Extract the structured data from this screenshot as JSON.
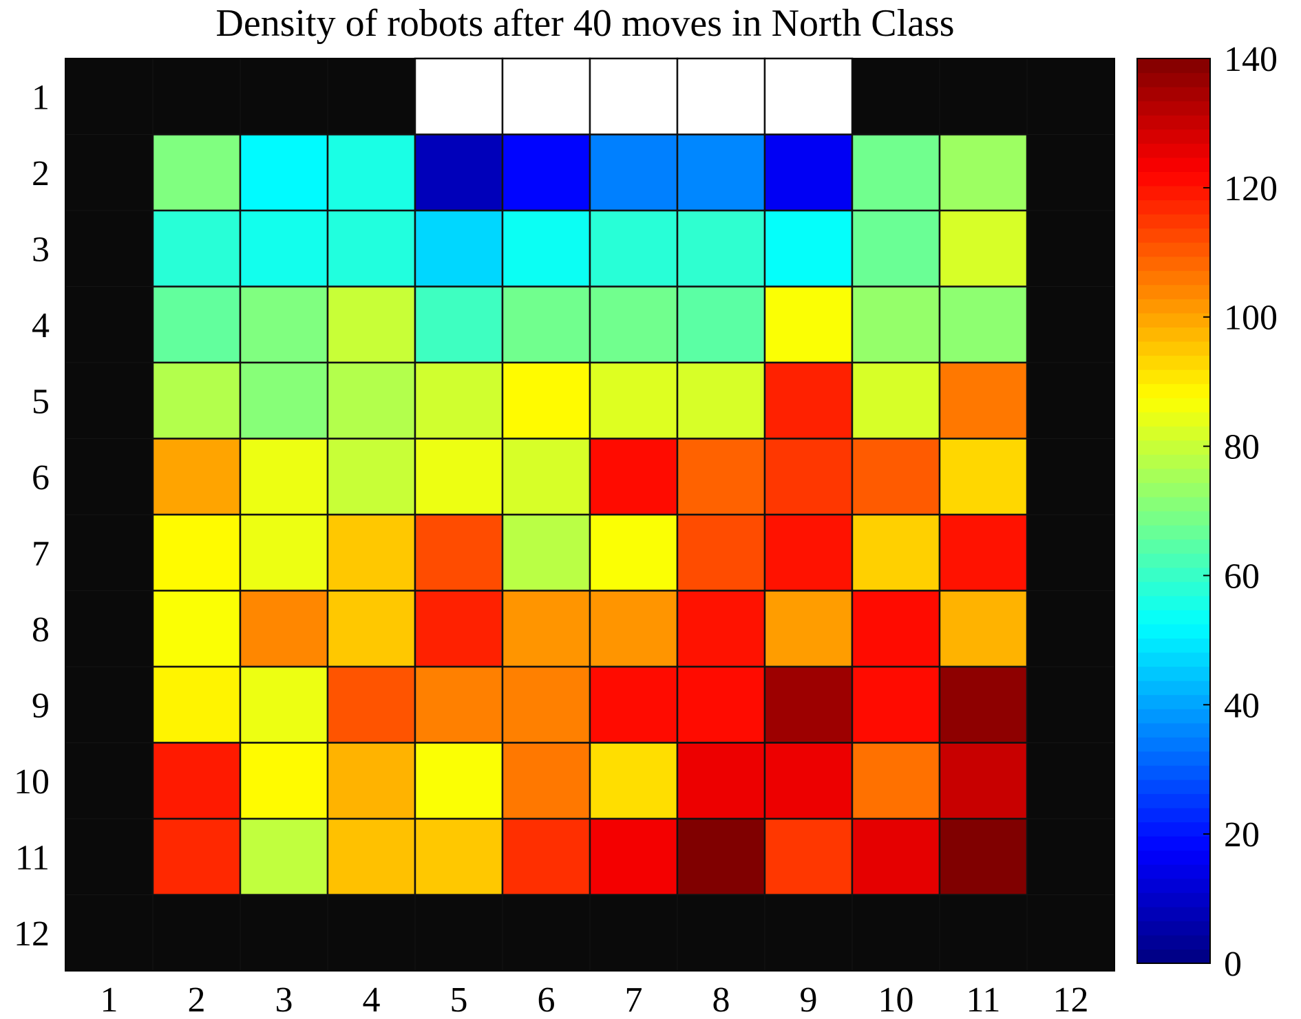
{
  "chart_data": {
    "type": "heatmap",
    "title": "Density of robots after 40 moves in North Class",
    "x_categories": [
      "1",
      "2",
      "3",
      "4",
      "5",
      "6",
      "7",
      "8",
      "9",
      "10",
      "11",
      "12"
    ],
    "y_categories": [
      "1",
      "2",
      "3",
      "4",
      "5",
      "6",
      "7",
      "8",
      "9",
      "10",
      "11",
      "12"
    ],
    "values": [
      [
        -1,
        -1,
        -1,
        -1,
        null,
        null,
        null,
        null,
        null,
        -1,
        -1,
        -1
      ],
      [
        -1,
        70,
        52,
        56,
        8,
        18,
        35,
        36,
        16,
        68,
        74,
        -1
      ],
      [
        -1,
        58,
        55,
        57,
        47,
        54,
        58,
        59,
        53,
        67,
        82,
        -1
      ],
      [
        -1,
        66,
        70,
        80,
        61,
        68,
        68,
        65,
        87,
        73,
        72,
        -1
      ],
      [
        -1,
        77,
        71,
        77,
        81,
        88,
        83,
        82,
        118,
        82,
        106,
        -1
      ],
      [
        -1,
        100,
        85,
        80,
        85,
        82,
        121,
        109,
        115,
        110,
        93,
        -1
      ],
      [
        -1,
        88,
        85,
        95,
        112,
        78,
        87,
        112,
        120,
        94,
        120,
        -1
      ],
      [
        -1,
        87,
        104,
        95,
        118,
        102,
        102,
        120,
        101,
        121,
        98,
        -1
      ],
      [
        -1,
        89,
        85,
        111,
        105,
        105,
        121,
        121,
        136,
        121,
        138,
        -1
      ],
      [
        -1,
        119,
        88,
        98,
        87,
        106,
        92,
        125,
        125,
        107,
        130,
        -1
      ],
      [
        -1,
        117,
        79,
        96,
        95,
        116,
        124,
        140,
        115,
        126,
        140,
        -1
      ],
      [
        -1,
        -1,
        -1,
        -1,
        -1,
        -1,
        -1,
        -1,
        -1,
        -1,
        -1,
        -1
      ]
    ],
    "colorbar": {
      "min": 0,
      "max": 140,
      "ticks": [
        "0",
        "20",
        "40",
        "60",
        "80",
        "100",
        "120",
        "140"
      ],
      "colormap": "jet"
    },
    "blocked_cell_color": "#0a0a0a",
    "empty_cell_color": "#ffffff"
  }
}
